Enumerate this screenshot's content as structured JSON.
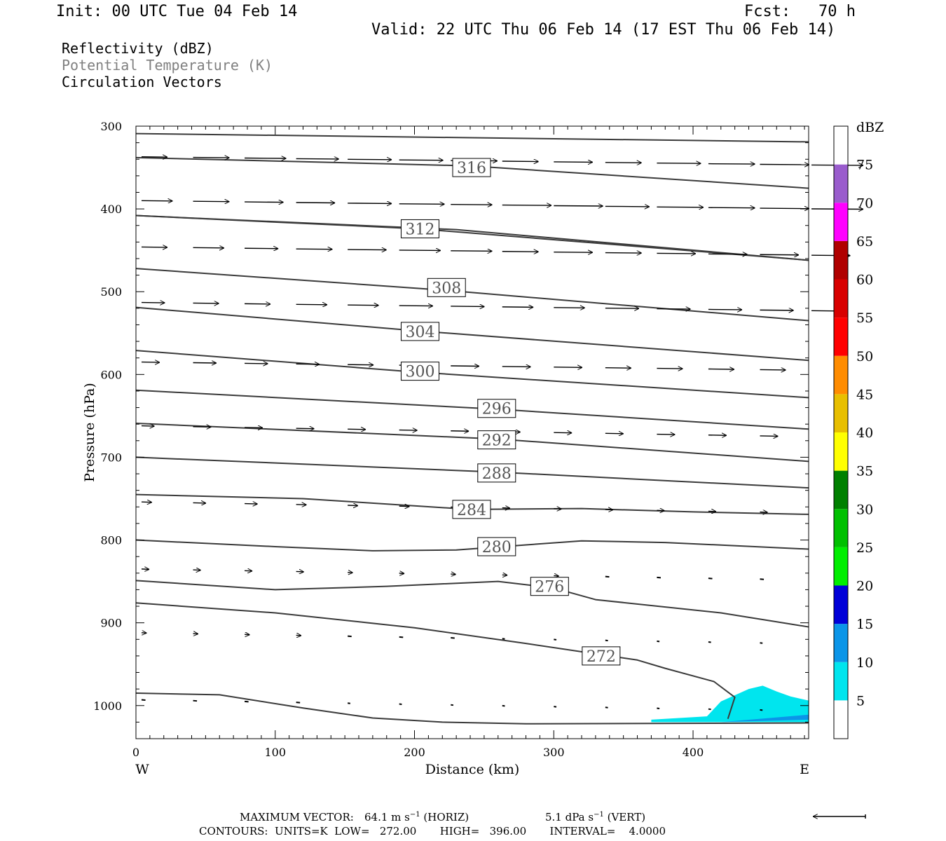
{
  "header": {
    "init": "Init: 00 UTC Tue 04 Feb 14",
    "fcst": "Fcst:   70 h",
    "valid": "Valid: 22 UTC Thu 06 Feb 14 (17 EST Thu 06 Feb 14)",
    "fields": [
      "Reflectivity (dBZ)",
      "Potential Temperature (K)",
      "Circulation Vectors"
    ]
  },
  "footer": {
    "max_vector_label": "MAXIMUM VECTOR:",
    "max_horiz": "64.1 m s",
    "horiz_unit": "(HORIZ)",
    "max_vert": "5.1 dPa s",
    "vert_unit": "(VERT)",
    "contours": "CONTOURS:  UNITS=K  LOW=   272.00       HIGH=   396.00       INTERVAL=    4.0000"
  },
  "colors": {
    "contour": "#3a3a3a",
    "vector": "#000000",
    "potential_temp_label": "#808080"
  },
  "chart_data": {
    "type": "cross-section",
    "xlabel": "Distance (km)",
    "ylabel": "Pressure (hPa)",
    "xlim": [
      0,
      483
    ],
    "ylim": [
      300,
      1040
    ],
    "x_ticks": [
      0,
      100,
      200,
      300,
      400
    ],
    "y_ticks": [
      300,
      400,
      500,
      600,
      700,
      800,
      900,
      1000
    ],
    "x_end_labels": {
      "left": "W",
      "right": "E"
    },
    "colorbar": {
      "title": "dBZ",
      "levels": [
        5,
        10,
        15,
        20,
        25,
        30,
        35,
        40,
        45,
        50,
        55,
        60,
        65,
        70,
        75
      ],
      "colors": [
        "#ffffff",
        "#00e5ee",
        "#0b95e8",
        "#0000d8",
        "#00ee00",
        "#00c000",
        "#008000",
        "#ffff00",
        "#e8bf00",
        "#ff8c00",
        "#ff0000",
        "#d80000",
        "#b00000",
        "#ff00ff",
        "#9a5ccd",
        "#ffffff"
      ]
    },
    "theta_contours": [
      {
        "value": "",
        "points": [
          [
            0,
            309
          ],
          [
            483,
            319
          ]
        ]
      },
      {
        "value": "316",
        "points": [
          [
            0,
            338
          ],
          [
            240,
            348
          ],
          [
            483,
            375
          ]
        ],
        "label_at": [
          241,
          350
        ]
      },
      {
        "value": "",
        "points": [
          [
            0,
            408
          ],
          [
            230,
            425
          ],
          [
            483,
            462
          ]
        ]
      },
      {
        "value": "312",
        "points": [
          [
            0,
            408
          ],
          [
            203,
            424
          ],
          [
            483,
            462
          ]
        ],
        "label_at": [
          204,
          424
        ]
      },
      {
        "value": "308",
        "points": [
          [
            0,
            472
          ],
          [
            220,
            498
          ],
          [
            483,
            535
          ]
        ],
        "label_at": [
          223,
          495
        ]
      },
      {
        "value": "304",
        "points": [
          [
            0,
            519
          ],
          [
            200,
            547
          ],
          [
            483,
            583
          ]
        ],
        "label_at": [
          204,
          548
        ]
      },
      {
        "value": "300",
        "points": [
          [
            0,
            571
          ],
          [
            200,
            597
          ],
          [
            483,
            628
          ]
        ],
        "label_at": [
          204,
          596
        ]
      },
      {
        "value": "296",
        "points": [
          [
            0,
            619
          ],
          [
            260,
            642
          ],
          [
            483,
            666
          ]
        ],
        "label_at": [
          259,
          641
        ]
      },
      {
        "value": "292",
        "points": [
          [
            0,
            659
          ],
          [
            260,
            678
          ],
          [
            483,
            705
          ]
        ],
        "label_at": [
          259,
          679
        ]
      },
      {
        "value": "288",
        "points": [
          [
            0,
            700
          ],
          [
            260,
            718
          ],
          [
            483,
            737
          ]
        ],
        "label_at": [
          259,
          719
        ]
      },
      {
        "value": "284",
        "points": [
          [
            0,
            745
          ],
          [
            120,
            750
          ],
          [
            240,
            763
          ],
          [
            320,
            762
          ],
          [
            400,
            766
          ],
          [
            483,
            769
          ]
        ],
        "label_at": [
          241,
          763
        ]
      },
      {
        "value": "280",
        "points": [
          [
            0,
            800
          ],
          [
            100,
            808
          ],
          [
            170,
            813
          ],
          [
            230,
            812
          ],
          [
            320,
            801
          ],
          [
            380,
            803
          ],
          [
            483,
            811
          ]
        ],
        "label_at": [
          259,
          808
        ]
      },
      {
        "value": "276",
        "points": [
          [
            0,
            849
          ],
          [
            100,
            860
          ],
          [
            180,
            856
          ],
          [
            260,
            850
          ],
          [
            300,
            858
          ],
          [
            330,
            872
          ],
          [
            420,
            888
          ],
          [
            483,
            905
          ]
        ],
        "label_at": [
          297,
          856
        ]
      },
      {
        "value": "272",
        "points": [
          [
            0,
            876
          ],
          [
            100,
            888
          ],
          [
            200,
            906
          ],
          [
            280,
            925
          ],
          [
            360,
            945
          ],
          [
            380,
            955
          ],
          [
            415,
            971
          ],
          [
            430,
            990
          ],
          [
            425,
            1016
          ]
        ],
        "label_at": [
          334,
          940
        ]
      },
      {
        "value": "",
        "points": [
          [
            0,
            985
          ],
          [
            60,
            987
          ],
          [
            120,
            1003
          ],
          [
            170,
            1015
          ],
          [
            220,
            1020
          ],
          [
            280,
            1022
          ],
          [
            483,
            1021
          ]
        ]
      }
    ],
    "reflectivity_areas": [
      {
        "dbz": 5,
        "points": [
          [
            370,
            1017
          ],
          [
            410,
            1013
          ],
          [
            420,
            995
          ],
          [
            440,
            980
          ],
          [
            450,
            976
          ],
          [
            460,
            983
          ],
          [
            470,
            989
          ],
          [
            483,
            994
          ],
          [
            483,
            1020
          ],
          [
            370,
            1020
          ]
        ]
      },
      {
        "dbz": 10,
        "points": [
          [
            420,
            1020
          ],
          [
            483,
            1011
          ],
          [
            483,
            1017
          ],
          [
            420,
            1020
          ]
        ]
      }
    ],
    "vector_rows": [
      {
        "p": 337,
        "x": [
          0,
          37,
          74,
          111,
          148,
          185,
          222,
          259,
          296,
          333,
          370,
          407,
          444,
          481
        ],
        "len": [
          20,
          28,
          32,
          33,
          34,
          34,
          36,
          28,
          30,
          28,
          34,
          36,
          38,
          40
        ]
      },
      {
        "p": 390,
        "x": [
          0,
          37,
          74,
          111,
          148,
          185,
          222,
          259,
          296,
          333,
          370,
          407,
          444,
          481
        ],
        "len": [
          24,
          28,
          30,
          30,
          34,
          35,
          32,
          38,
          38,
          34,
          36,
          36,
          38,
          40
        ]
      },
      {
        "p": 446,
        "x": [
          0,
          37,
          74,
          111,
          148,
          185,
          222,
          259,
          296,
          333,
          370,
          407,
          444,
          481
        ],
        "len": [
          20,
          24,
          26,
          28,
          30,
          32,
          32,
          28,
          30,
          28,
          30,
          30,
          30,
          30
        ]
      },
      {
        "p": 513,
        "x": [
          0,
          37,
          74,
          111,
          148,
          185,
          222,
          259,
          296,
          333,
          370,
          407,
          444,
          481
        ],
        "len": [
          18,
          20,
          20,
          24,
          24,
          26,
          26,
          24,
          24,
          26,
          26,
          26,
          26,
          22
        ]
      },
      {
        "p": 585,
        "x": [
          0,
          37,
          74,
          111,
          148,
          185,
          222,
          259,
          296,
          333,
          370,
          407,
          444
        ],
        "len": [
          14,
          18,
          18,
          18,
          20,
          22,
          22,
          22,
          22,
          20,
          20,
          20,
          20
        ]
      },
      {
        "p": 662,
        "x": [
          0,
          37,
          74,
          111,
          148,
          185,
          222,
          259,
          296,
          333,
          370,
          407,
          444
        ],
        "len": [
          10,
          14,
          14,
          14,
          14,
          14,
          14,
          14,
          14,
          14,
          14,
          14,
          14
        ]
      },
      {
        "p": 754,
        "x": [
          0,
          37,
          74,
          111,
          148,
          185,
          222,
          259,
          296,
          333,
          370,
          407,
          444
        ],
        "len": [
          8,
          10,
          10,
          8,
          8,
          8,
          6,
          6,
          6,
          6,
          6,
          6,
          6
        ]
      },
      {
        "p": 835,
        "x": [
          0,
          37,
          74,
          111,
          148,
          185,
          222,
          259,
          296,
          333,
          370,
          407,
          444
        ],
        "len": [
          6,
          6,
          6,
          6,
          4,
          4,
          4,
          4,
          4,
          3,
          3,
          3,
          3
        ]
      },
      {
        "p": 912,
        "x": [
          0,
          37,
          74,
          111,
          148,
          185,
          222,
          259,
          296,
          333,
          370,
          407,
          444
        ],
        "len": [
          4,
          4,
          4,
          4,
          3,
          3,
          3,
          2,
          2,
          2,
          2,
          2,
          2
        ]
      },
      {
        "p": 993,
        "x": [
          0,
          37,
          74,
          111,
          148,
          185,
          222,
          259,
          296,
          333,
          370,
          407,
          444
        ],
        "len": [
          3,
          3,
          3,
          3,
          2,
          2,
          2,
          2,
          2,
          2,
          2,
          2,
          2
        ]
      }
    ]
  }
}
